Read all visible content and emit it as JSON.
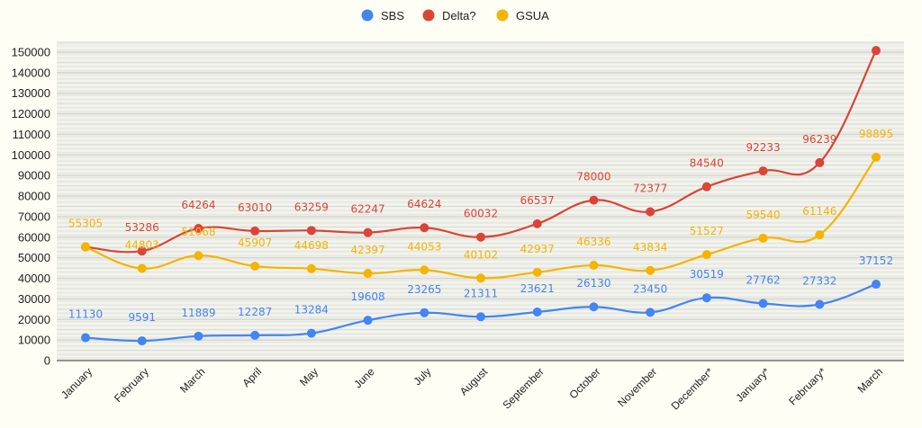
{
  "chart_data": {
    "type": "line",
    "title": "",
    "xlabel": "",
    "ylabel": "",
    "categories": [
      "January",
      "February",
      "March",
      "April",
      "May",
      "June",
      "July",
      "August",
      "September",
      "October",
      "November",
      "December*",
      "January*",
      "February*",
      "March"
    ],
    "y_ticks": [
      "0",
      "10000",
      "20000",
      "30000",
      "40000",
      "50000",
      "60000",
      "70000",
      "80000",
      "90000",
      "100000",
      "110000",
      "120000",
      "130000",
      "140000",
      "150000"
    ],
    "ylim": [
      0,
      150000
    ],
    "grid": true,
    "legend_position": "top-center",
    "smooth": true,
    "series": [
      {
        "name": "SBS",
        "color": "#4285f4",
        "values": [
          11130,
          9591,
          11889,
          12287,
          13284,
          19608,
          23265,
          21311,
          23621,
          26130,
          23450,
          30519,
          27762,
          27332,
          37152
        ],
        "labels": [
          "11130",
          "9591",
          "11889",
          "12287",
          "13284",
          "19608",
          "23265",
          "21311",
          "23621",
          "26130",
          "23450",
          "30519",
          "27762",
          "27332",
          "37152"
        ]
      },
      {
        "name": "Delta?",
        "color": "#db4437",
        "values": [
          55305,
          53286,
          64264,
          63010,
          63259,
          62247,
          64624,
          60032,
          66537,
          78000,
          72377,
          84540,
          92233,
          96239,
          150800
        ],
        "labels": [
          "",
          "53286",
          "64264",
          "63010",
          "63259",
          "62247",
          "64624",
          "60032",
          "66537",
          "78000",
          "72377",
          "84540",
          "92233",
          "96239",
          ""
        ]
      },
      {
        "name": "GSUA",
        "color": "#f4b400",
        "values": [
          55305,
          44803,
          51068,
          45907,
          44698,
          42397,
          44053,
          40102,
          42937,
          46336,
          43834,
          51527,
          59540,
          61146,
          98895
        ],
        "labels": [
          "55305",
          "44803",
          "51068",
          "45907",
          "44698",
          "42397",
          "44053",
          "40102",
          "42937",
          "46336",
          "43834",
          "51527",
          "59540",
          "61146",
          "98895"
        ]
      }
    ]
  },
  "colors": {
    "background": "#fefef4",
    "plot_background": "#efefe9",
    "grid_major": "#d6d6d0",
    "grid_minor": "#f8f8f2",
    "axis": "#777777",
    "text": "#222222"
  }
}
